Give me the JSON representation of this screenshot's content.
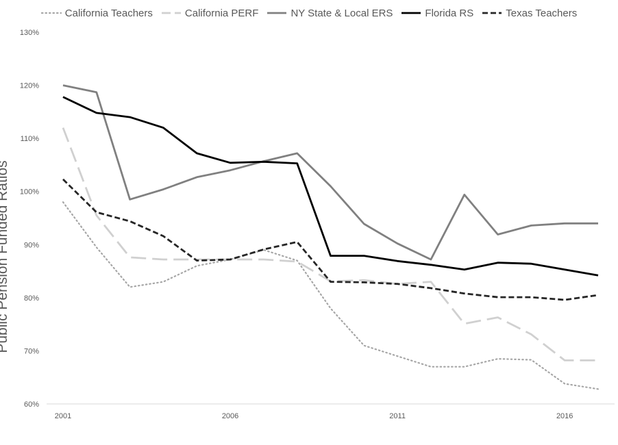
{
  "chart_data": {
    "type": "line",
    "ylabel": "Public Pension Funded Ratios",
    "xlabel": "",
    "x": [
      2001,
      2002,
      2003,
      2004,
      2005,
      2006,
      2007,
      2008,
      2009,
      2010,
      2011,
      2012,
      2013,
      2014,
      2015,
      2016,
      2017
    ],
    "x_tick_labels": [
      "2001",
      "2006",
      "2011",
      "2016"
    ],
    "x_tick_values": [
      2001,
      2006,
      2011,
      2016
    ],
    "y_tick_labels": [
      "60%",
      "70%",
      "80%",
      "90%",
      "100%",
      "110%",
      "120%",
      "130%"
    ],
    "y_tick_values": [
      60,
      70,
      80,
      90,
      100,
      110,
      120,
      130
    ],
    "ylim": [
      60,
      130
    ],
    "xlim": [
      2001,
      2017
    ],
    "grid": false,
    "legend_position": "top",
    "series": [
      {
        "name": "California Teachers",
        "color": "#a6a6a6",
        "style": "dotted",
        "values": [
          98,
          89.5,
          82,
          83,
          86,
          87.2,
          89,
          87,
          78,
          71,
          69,
          67,
          67,
          68.5,
          68.3,
          63.8,
          62.8
        ]
      },
      {
        "name": "California PERF",
        "color": "#d0d0d0",
        "style": "longdash",
        "values": [
          112,
          95.5,
          87.6,
          87.2,
          87.2,
          87.2,
          87.2,
          86.8,
          83.1,
          83.3,
          82.6,
          83,
          75.1,
          76.3,
          73.1,
          68.2,
          68.2
        ]
      },
      {
        "name": "NY State & Local ERS",
        "color": "#808080",
        "style": "solid",
        "values": [
          120,
          118.7,
          98.5,
          100.4,
          102.7,
          104,
          105.7,
          107.2,
          101,
          93.9,
          90.2,
          87.2,
          99.4,
          91.9,
          93.6,
          94,
          94
        ]
      },
      {
        "name": "Florida RS",
        "color": "#000000",
        "style": "solid",
        "values": [
          117.8,
          114.8,
          114,
          112,
          107.2,
          105.4,
          105.6,
          105.3,
          87.9,
          87.9,
          86.9,
          86.2,
          85.3,
          86.6,
          86.4,
          85.3,
          84.2
        ]
      },
      {
        "name": "Texas Teachers",
        "color": "#262626",
        "style": "dashed",
        "values": [
          102.3,
          96.1,
          94.4,
          91.6,
          87,
          87.2,
          89.1,
          90.5,
          83,
          82.9,
          82.6,
          81.8,
          80.8,
          80.1,
          80.1,
          79.6,
          80.5
        ]
      }
    ]
  }
}
